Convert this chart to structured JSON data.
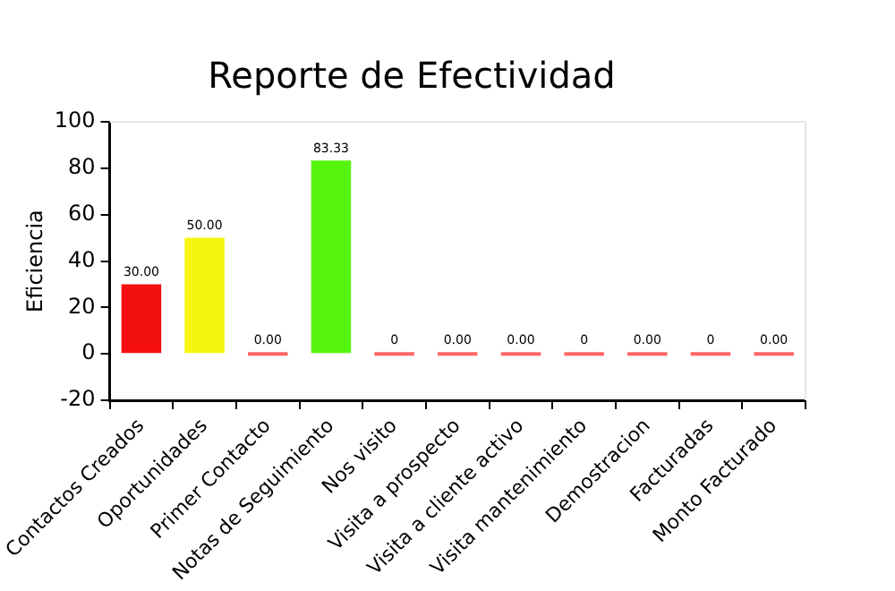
{
  "chart_data": {
    "type": "bar",
    "title": "Reporte de Efectividad",
    "ylabel": "Eficiencia",
    "categories": [
      "Contactos Creados",
      "Oportunidades",
      "Primer Contacto",
      "Notas de Seguimiento",
      "Nos visito",
      "Visita a prospecto",
      "Visita a cliente activo",
      "Visita mantenimiento",
      "Demostracion",
      "Facturadas",
      "Monto Facturado"
    ],
    "values": [
      30,
      50,
      0,
      83.33,
      0,
      0,
      0,
      0,
      0,
      0,
      0
    ],
    "colors": [
      "#f51010",
      "#f5f50f",
      "#ff6666",
      "#55f50f",
      "#ff6666",
      "#ff6666",
      "#ff6666",
      "#ff6666",
      "#ff6666",
      "#ff6666",
      "#ff6666"
    ],
    "value_labels": [
      "30.00",
      "50.00",
      "0.00",
      "83.33",
      "0",
      "0.00",
      "0.00",
      "0",
      "0.00",
      "0",
      "0.00"
    ],
    "ylim": [
      -20,
      100
    ],
    "yticks": [
      -20,
      0,
      20,
      40,
      60,
      80,
      100
    ],
    "grid": false,
    "legend": false
  }
}
